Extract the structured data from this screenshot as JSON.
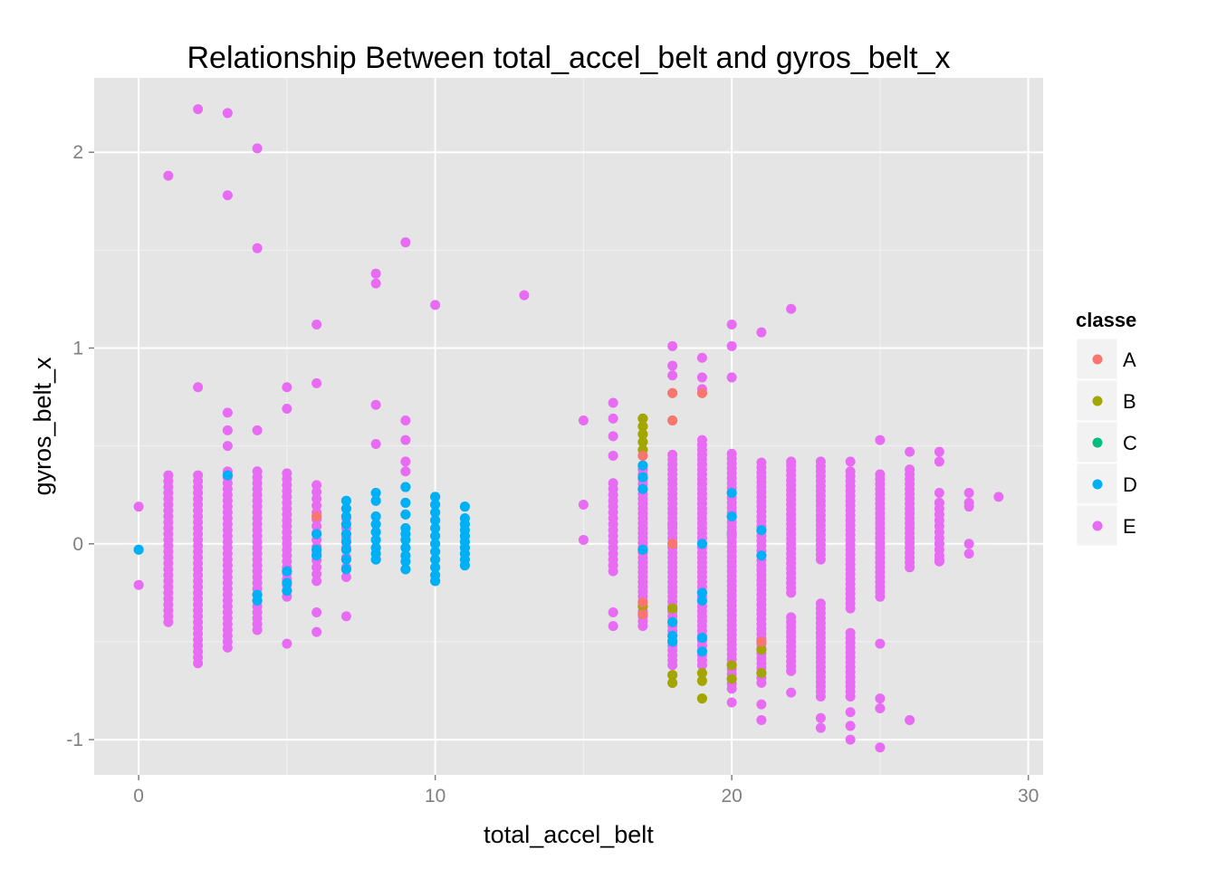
{
  "chart_data": {
    "type": "scatter",
    "title": "Relationship Between total_accel_belt and gyros_belt_x",
    "xlabel": "total_accel_belt",
    "ylabel": "gyros_belt_x",
    "xlim": [
      -1.5,
      30.5
    ],
    "ylim": [
      -1.18,
      2.38
    ],
    "x_ticks": [
      0,
      10,
      20,
      30
    ],
    "x_tick_labels": [
      "0",
      "10",
      "20",
      "30"
    ],
    "y_ticks": [
      -1,
      0,
      1,
      2
    ],
    "y_tick_labels": [
      "-1",
      "0",
      "1",
      "2"
    ],
    "grid": true,
    "legend_position": "right",
    "legend": {
      "title": "classe",
      "entries": [
        {
          "label": "A",
          "color": "#F8766D"
        },
        {
          "label": "B",
          "color": "#A3A500"
        },
        {
          "label": "C",
          "color": "#00BF7D"
        },
        {
          "label": "D",
          "color": "#00B0F6"
        },
        {
          "label": "E",
          "color": "#E76BF3"
        }
      ]
    },
    "series": [
      {
        "name": "A",
        "color": "#F8766D",
        "points": [
          [
            17,
            0.45
          ],
          [
            17,
            -0.3
          ],
          [
            17,
            -0.36
          ],
          [
            18,
            0.77
          ],
          [
            18,
            0.63
          ],
          [
            19,
            0.77
          ],
          [
            6,
            0.14
          ],
          [
            18,
            0.0
          ],
          [
            21,
            -0.5
          ]
        ]
      },
      {
        "name": "B",
        "color": "#A3A500",
        "points": [
          [
            17,
            0.64
          ],
          [
            17,
            0.6
          ],
          [
            17,
            0.56
          ],
          [
            17,
            0.52
          ],
          [
            17,
            0.48
          ],
          [
            17,
            -0.32
          ],
          [
            18,
            -0.67
          ],
          [
            18,
            -0.71
          ],
          [
            18,
            -0.33
          ],
          [
            19,
            -0.7
          ],
          [
            19,
            -0.79
          ],
          [
            19,
            -0.66
          ],
          [
            20,
            -0.62
          ],
          [
            20,
            -0.69
          ],
          [
            21,
            -0.66
          ],
          [
            21,
            -0.54
          ]
        ]
      },
      {
        "name": "C",
        "color": "#00BF7D",
        "points": [
          [
            17,
            0.38
          ],
          [
            18,
            0.1
          ],
          [
            20,
            0.05
          ]
        ]
      },
      {
        "name": "D",
        "color": "#00B0F6",
        "points": [
          [
            0,
            -0.03
          ],
          [
            3,
            0.35
          ],
          [
            4,
            -0.29
          ],
          [
            4,
            -0.26
          ],
          [
            5,
            -0.14
          ],
          [
            5,
            -0.2
          ],
          [
            5,
            -0.24
          ],
          [
            6,
            -0.03
          ],
          [
            6,
            -0.06
          ],
          [
            6,
            0.05
          ],
          [
            7,
            0.22
          ],
          [
            7,
            0.18
          ],
          [
            7,
            0.14
          ],
          [
            7,
            0.1
          ],
          [
            7,
            0.05
          ],
          [
            7,
            0.01
          ],
          [
            7,
            -0.03
          ],
          [
            7,
            -0.08
          ],
          [
            7,
            -0.13
          ],
          [
            8,
            0.26
          ],
          [
            8,
            0.22
          ],
          [
            8,
            0.14
          ],
          [
            8,
            0.1
          ],
          [
            8,
            0.06
          ],
          [
            8,
            0.02
          ],
          [
            8,
            -0.02
          ],
          [
            8,
            -0.05
          ],
          [
            8,
            -0.08
          ],
          [
            9,
            0.29
          ],
          [
            9,
            0.21
          ],
          [
            9,
            0.15
          ],
          [
            9,
            0.08
          ],
          [
            9,
            0.05
          ],
          [
            9,
            0.02
          ],
          [
            9,
            -0.02
          ],
          [
            9,
            -0.06
          ],
          [
            9,
            -0.09
          ],
          [
            9,
            -0.13
          ],
          [
            10,
            0.24
          ],
          [
            10,
            0.2
          ],
          [
            10,
            0.16
          ],
          [
            10,
            0.12
          ],
          [
            10,
            0.08
          ],
          [
            10,
            0.04
          ],
          [
            10,
            0.0
          ],
          [
            10,
            -0.04
          ],
          [
            10,
            -0.08
          ],
          [
            10,
            -0.12
          ],
          [
            10,
            -0.16
          ],
          [
            10,
            -0.19
          ],
          [
            11,
            0.19
          ],
          [
            11,
            0.13
          ],
          [
            11,
            0.1
          ],
          [
            11,
            0.07
          ],
          [
            11,
            0.04
          ],
          [
            11,
            0.01
          ],
          [
            11,
            -0.02
          ],
          [
            11,
            -0.05
          ],
          [
            11,
            -0.08
          ],
          [
            11,
            -0.11
          ],
          [
            17,
            0.4
          ],
          [
            17,
            0.34
          ],
          [
            17,
            0.28
          ],
          [
            17,
            -0.03
          ],
          [
            18,
            -0.47
          ],
          [
            18,
            -0.5
          ],
          [
            18,
            -0.4
          ],
          [
            19,
            -0.55
          ],
          [
            19,
            -0.48
          ],
          [
            19,
            -0.25
          ],
          [
            19,
            0.0
          ],
          [
            19,
            -0.29
          ],
          [
            20,
            0.26
          ],
          [
            20,
            0.14
          ],
          [
            21,
            0.07
          ],
          [
            21,
            -0.06
          ]
        ]
      },
      {
        "name": "E",
        "color": "#E76BF3",
        "points": [
          [
            0,
            0.19
          ],
          [
            0,
            -0.21
          ],
          [
            1,
            1.88
          ],
          [
            2,
            2.22
          ],
          [
            2,
            0.8
          ],
          [
            3,
            2.2
          ],
          [
            3,
            1.78
          ],
          [
            3,
            0.67
          ],
          [
            3,
            0.58
          ],
          [
            3,
            0.5
          ],
          [
            4,
            2.02
          ],
          [
            4,
            1.51
          ],
          [
            4,
            0.58
          ],
          [
            5,
            0.8
          ],
          [
            5,
            0.69
          ],
          [
            5,
            -0.51
          ],
          [
            6,
            1.12
          ],
          [
            6,
            0.82
          ],
          [
            6,
            -0.35
          ],
          [
            6,
            -0.45
          ],
          [
            7,
            -0.37
          ],
          [
            8,
            1.38
          ],
          [
            8,
            1.33
          ],
          [
            8,
            0.71
          ],
          [
            8,
            0.51
          ],
          [
            9,
            1.54
          ],
          [
            9,
            0.63
          ],
          [
            9,
            0.53
          ],
          [
            9,
            0.42
          ],
          [
            9,
            0.37
          ],
          [
            10,
            1.22
          ],
          [
            13,
            1.27
          ],
          [
            15,
            0.63
          ],
          [
            15,
            0.2
          ],
          [
            15,
            0.02
          ],
          [
            16,
            0.72
          ],
          [
            16,
            0.64
          ],
          [
            16,
            0.55
          ],
          [
            16,
            0.45
          ],
          [
            16,
            -0.35
          ],
          [
            16,
            -0.42
          ],
          [
            18,
            1.01
          ],
          [
            18,
            0.91
          ],
          [
            18,
            0.86
          ],
          [
            19,
            0.95
          ],
          [
            19,
            0.85
          ],
          [
            19,
            0.79
          ],
          [
            20,
            1.12
          ],
          [
            20,
            1.01
          ],
          [
            20,
            0.85
          ],
          [
            20,
            -0.81
          ],
          [
            21,
            1.08
          ],
          [
            21,
            -0.82
          ],
          [
            21,
            -0.9
          ],
          [
            22,
            1.2
          ],
          [
            22,
            0.42
          ],
          [
            22,
            -0.76
          ],
          [
            23,
            0.42
          ],
          [
            23,
            -0.89
          ],
          [
            23,
            -0.94
          ],
          [
            24,
            0.42
          ],
          [
            24,
            -0.86
          ],
          [
            24,
            -0.93
          ],
          [
            24,
            -1.0
          ],
          [
            25,
            0.53
          ],
          [
            25,
            -0.51
          ],
          [
            25,
            -0.79
          ],
          [
            25,
            -0.84
          ],
          [
            25,
            -1.04
          ],
          [
            26,
            0.47
          ],
          [
            26,
            -0.9
          ],
          [
            27,
            0.47
          ],
          [
            27,
            0.42
          ],
          [
            27,
            0.26
          ],
          [
            27,
            0.21
          ],
          [
            27,
            0.0
          ],
          [
            27,
            -0.08
          ],
          [
            28,
            0.26
          ],
          [
            28,
            0.21
          ],
          [
            28,
            0.19
          ],
          [
            28,
            0.0
          ],
          [
            28,
            -0.05
          ],
          [
            29,
            0.24
          ]
        ],
        "columns": [
          {
            "x": 1,
            "ymin": -0.4,
            "ymax": 0.37,
            "step": 0.03
          },
          {
            "x": 2,
            "ymin": -0.61,
            "ymax": 0.35,
            "step": 0.03
          },
          {
            "x": 3,
            "ymin": -0.53,
            "ymax": 0.38,
            "step": 0.03
          },
          {
            "x": 4,
            "ymin": -0.44,
            "ymax": 0.38,
            "step": 0.03
          },
          {
            "x": 5,
            "ymin": -0.27,
            "ymax": 0.37,
            "step": 0.03
          },
          {
            "x": 6,
            "ymin": -0.19,
            "ymax": 0.32,
            "step": 0.035
          },
          {
            "x": 7,
            "ymin": -0.17,
            "ymax": 0.19,
            "step": 0.05
          },
          {
            "x": 16,
            "ymin": -0.14,
            "ymax": 0.31,
            "step": 0.03
          },
          {
            "x": 17,
            "ymin": -0.42,
            "ymax": 0.38,
            "step": 0.025
          },
          {
            "x": 18,
            "ymin": -0.62,
            "ymax": 0.47,
            "step": 0.025
          },
          {
            "x": 19,
            "ymin": -0.62,
            "ymax": 0.53,
            "step": 0.025
          },
          {
            "x": 20,
            "ymin": -0.74,
            "ymax": 0.48,
            "step": 0.025
          },
          {
            "x": 21,
            "ymin": -0.71,
            "ymax": 0.42,
            "step": 0.025
          },
          {
            "x": 22,
            "ymin": -0.65,
            "ymax": 0.41,
            "step": 0.025
          },
          {
            "x": 23,
            "ymin": -0.78,
            "ymax": 0.41,
            "step": 0.025
          },
          {
            "x": 24,
            "ymin": -0.78,
            "ymax": 0.38,
            "step": 0.025
          },
          {
            "x": 25,
            "ymin": -0.27,
            "ymax": 0.37,
            "step": 0.025
          },
          {
            "x": 26,
            "ymin": -0.12,
            "ymax": 0.38,
            "step": 0.025
          },
          {
            "x": 27,
            "ymin": -0.09,
            "ymax": 0.22,
            "step": 0.03
          }
        ],
        "gaps": [
          {
            "x": 22,
            "from": -0.35,
            "to": -0.25
          },
          {
            "x": 23,
            "from": -0.3,
            "to": -0.1
          },
          {
            "x": 24,
            "from": -0.45,
            "to": -0.35
          }
        ]
      }
    ]
  }
}
